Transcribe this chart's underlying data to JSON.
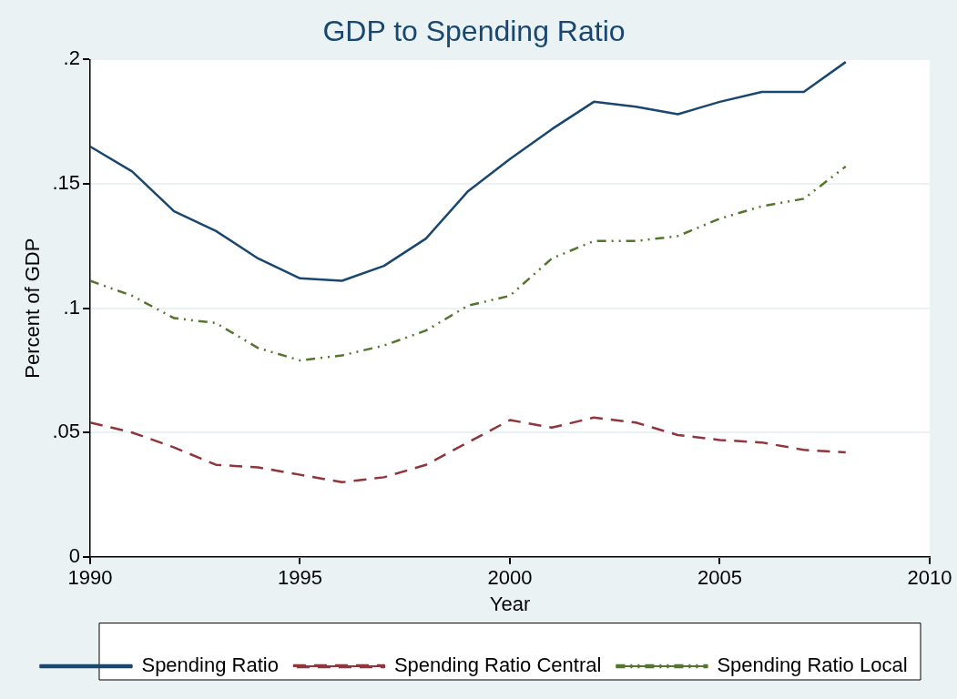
{
  "chart_data": {
    "type": "line",
    "title": "GDP to Spending Ratio",
    "xlabel": "Year",
    "ylabel": "Percent of GDP",
    "x": [
      1990,
      1991,
      1992,
      1993,
      1994,
      1995,
      1996,
      1997,
      1998,
      1999,
      2000,
      2001,
      2002,
      2003,
      2004,
      2005,
      2006,
      2007,
      2008
    ],
    "series": [
      {
        "name": "Spending Ratio",
        "color": "#1a476f",
        "line_style": "solid",
        "values": [
          0.165,
          0.155,
          0.139,
          0.131,
          0.12,
          0.112,
          0.111,
          0.117,
          0.128,
          0.147,
          0.16,
          0.172,
          0.183,
          0.181,
          0.178,
          0.183,
          0.187,
          0.187,
          0.199
        ]
      },
      {
        "name": "Spending Ratio Central",
        "color": "#90353b",
        "line_style": "dashed",
        "values": [
          0.054,
          0.05,
          0.044,
          0.037,
          0.036,
          0.033,
          0.03,
          0.032,
          0.037,
          0.046,
          0.055,
          0.052,
          0.056,
          0.054,
          0.049,
          0.047,
          0.046,
          0.043,
          0.042
        ]
      },
      {
        "name": "Spending Ratio Local",
        "color": "#55752f",
        "line_style": "dashdot",
        "values": [
          0.111,
          0.105,
          0.096,
          0.094,
          0.084,
          0.079,
          0.081,
          0.085,
          0.091,
          0.101,
          0.105,
          0.12,
          0.127,
          0.127,
          0.129,
          0.136,
          0.141,
          0.144,
          0.157
        ]
      }
    ],
    "xlim": [
      1990,
      2010
    ],
    "xticks": [
      1990,
      1995,
      2000,
      2005,
      2010
    ],
    "ylim": [
      0,
      0.2
    ],
    "yticks": [
      0,
      {
        "value": 0.05,
        "label": ".05"
      },
      {
        "value": 0.1,
        "label": ".1"
      },
      {
        "value": 0.15,
        "label": ".15"
      },
      {
        "value": 0.2,
        "label": ".2"
      }
    ],
    "grid": "y",
    "legend": "bottom",
    "marker": "none"
  }
}
